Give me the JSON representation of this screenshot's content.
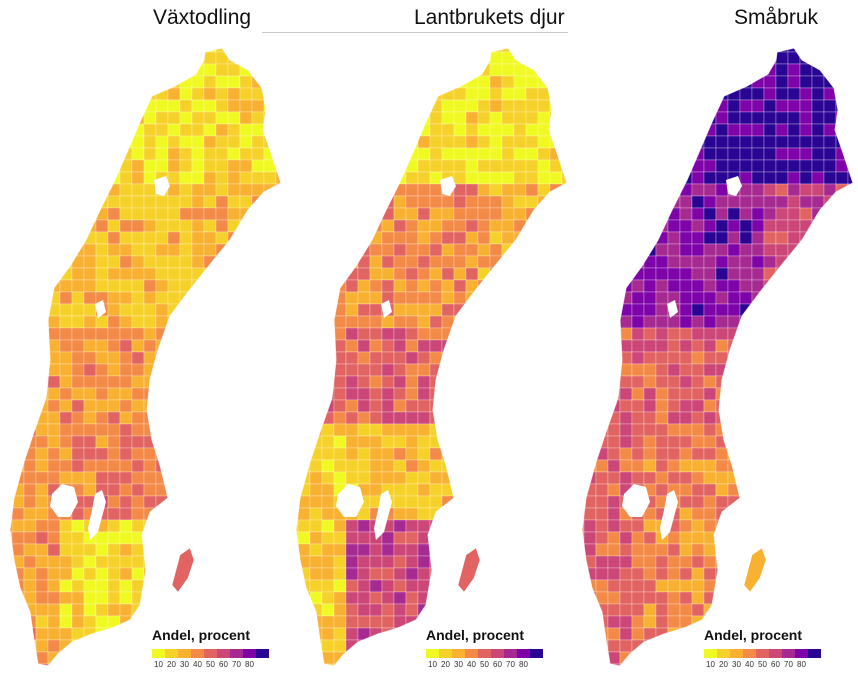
{
  "panels": [
    {
      "title": "Växtodling",
      "legend": {
        "title": "Andel, procent",
        "ticks": [
          "10",
          "20",
          "30",
          "40",
          "50",
          "60",
          "70",
          "80"
        ]
      },
      "palette": [
        "#f0f921",
        "#f6d12a",
        "#f9b132",
        "#f48a47",
        "#e16462",
        "#cc4778",
        "#a62a91",
        "#7e03a8",
        "#2a0593"
      ],
      "region_shares": {
        "far_north": 12,
        "north_coast": 25,
        "north_inland": 22,
        "mid": 32,
        "south_central": 40,
        "southwest": 30,
        "south": 14,
        "gotland": 45
      }
    },
    {
      "title": "Lantbrukets djur",
      "legend": {
        "title": "Andel, procent",
        "ticks": [
          "10",
          "20",
          "30",
          "40",
          "50",
          "60",
          "70",
          "80"
        ]
      },
      "palette": [
        "#f0f921",
        "#f6d12a",
        "#f9b132",
        "#f48a47",
        "#e16462",
        "#cc4778",
        "#a62a91",
        "#7e03a8",
        "#2a0593"
      ],
      "region_shares": {
        "far_north": 10,
        "north_coast": 25,
        "north_inland": 35,
        "mid": 45,
        "south_central": 22,
        "southwest": 18,
        "south": 55,
        "gotland": 45
      }
    },
    {
      "title": "Småbruk",
      "legend": {
        "title": "Andel, procent",
        "ticks": [
          "10",
          "20",
          "30",
          "40",
          "50",
          "60",
          "70",
          "80"
        ]
      },
      "palette": [
        "#f0f921",
        "#f6d12a",
        "#f9b132",
        "#f48a47",
        "#e16462",
        "#cc4778",
        "#a62a91",
        "#7e03a8",
        "#2a0593"
      ],
      "region_shares": {
        "far_north": 85,
        "north_coast": 55,
        "north_inland": 72,
        "mid": 48,
        "south_central": 38,
        "southwest": 45,
        "south": 35,
        "gotland": 22
      }
    }
  ]
}
